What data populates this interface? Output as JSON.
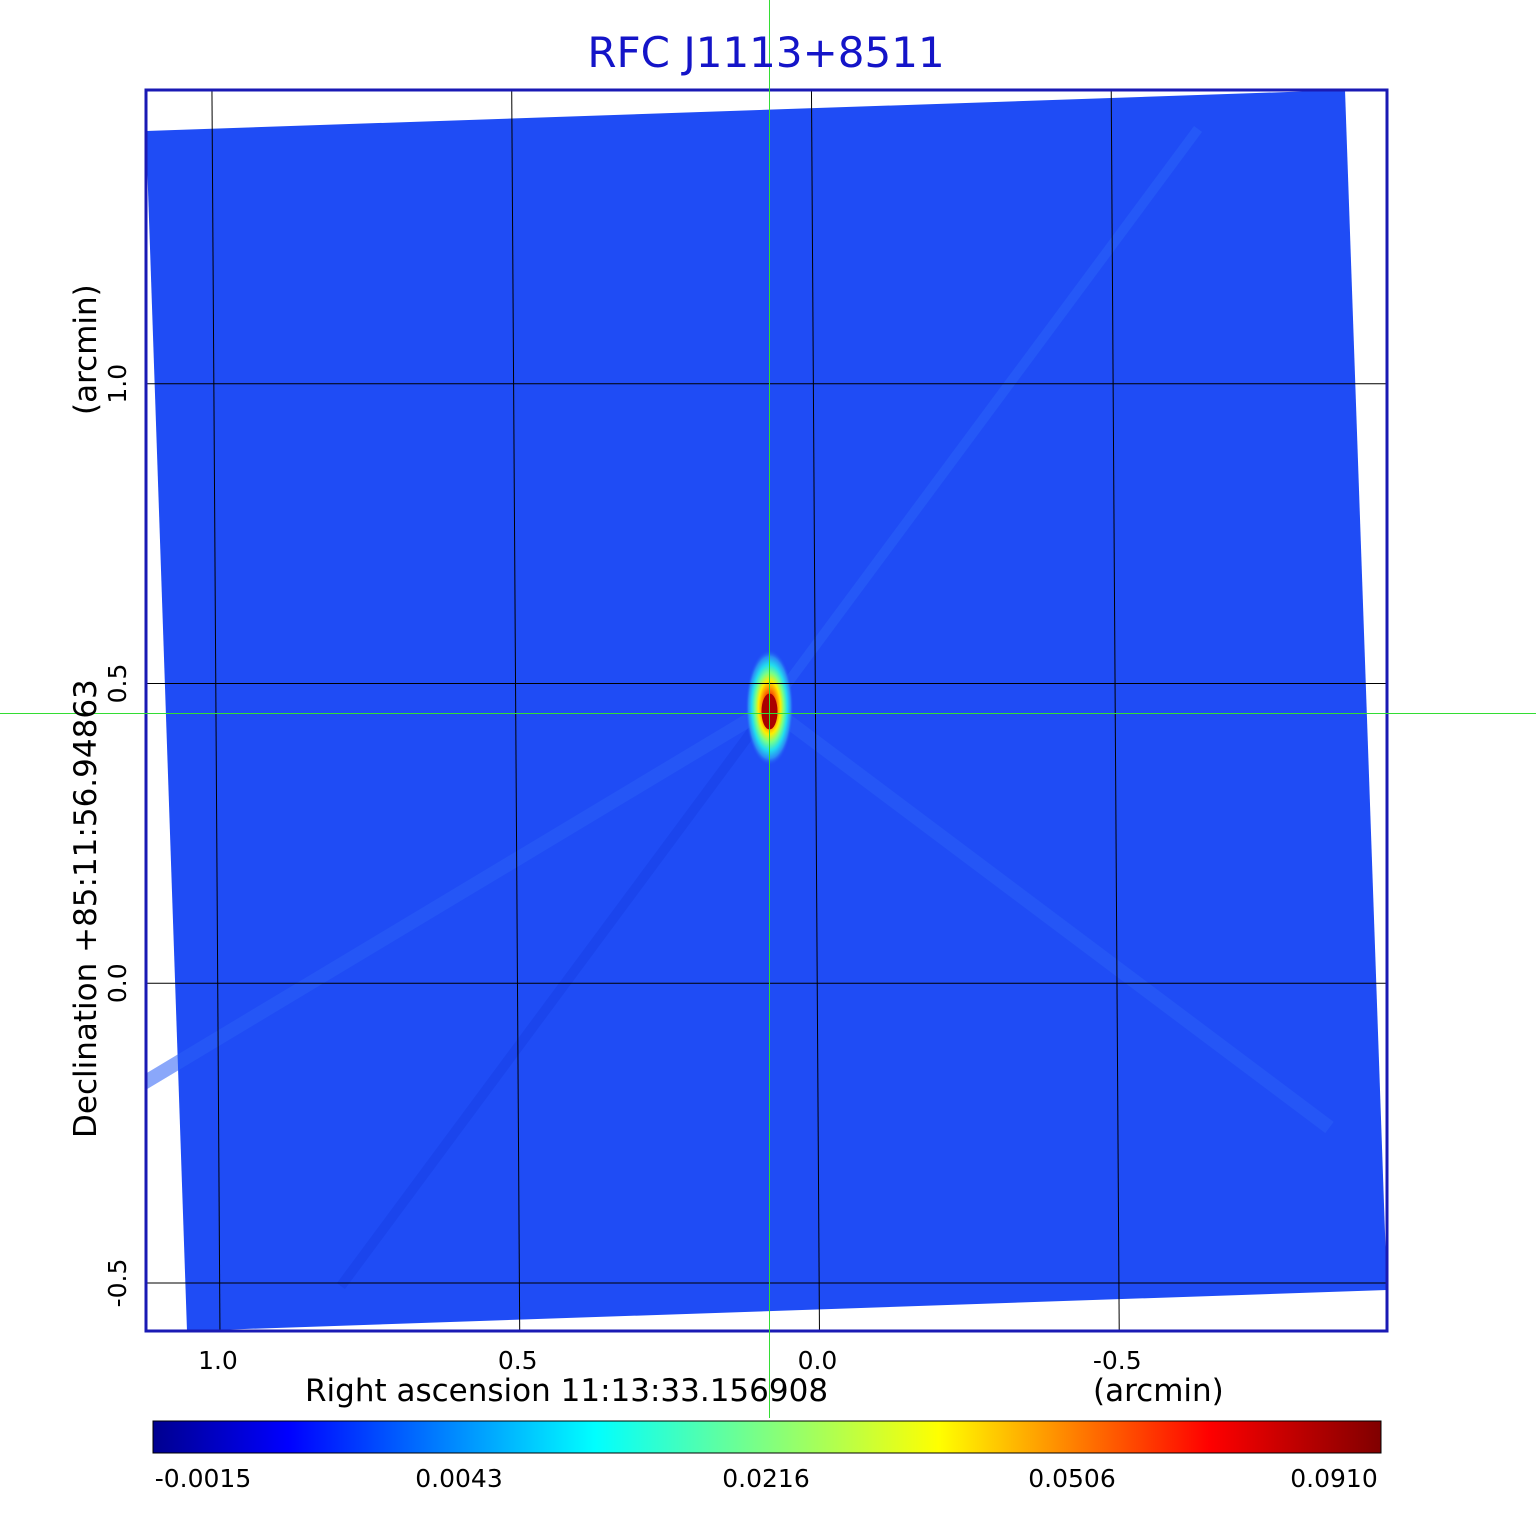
{
  "chart_data": {
    "type": "heatmap",
    "title": "RFC J1113+8511",
    "xlabel": "Right ascension  11:13:33.156908",
    "xunit": "(arcmin)",
    "ylabel": "Declination  +85:11:56.94863",
    "yunit": "(arcmin)",
    "xlim": [
      1.11,
      -0.96
    ],
    "ylim": [
      -0.58,
      1.49
    ],
    "x_ticks": [
      {
        "value": 1.0,
        "label": "1.0"
      },
      {
        "value": 0.5,
        "label": "0.5"
      },
      {
        "value": 0.0,
        "label": "0.0"
      },
      {
        "value": -0.5,
        "label": "-0.5"
      }
    ],
    "y_ticks": [
      {
        "value": 1.0,
        "label": "1.0"
      },
      {
        "value": 0.5,
        "label": "0.5"
      },
      {
        "value": 0.0,
        "label": "0.0"
      },
      {
        "value": -0.5,
        "label": "-0.5"
      }
    ],
    "grid": true,
    "crosshair": {
      "x": 0.07,
      "y": 0.45
    },
    "source": {
      "x": 0.07,
      "y": 0.46,
      "peak": 0.091
    },
    "colorbar": {
      "colormap": "jet",
      "ticks": [
        "-0.0015",
        "0.0043",
        "0.0216",
        "0.0506",
        "0.0910"
      ]
    },
    "colors": {
      "title": "#1414c8",
      "frame": "#1a1ab4",
      "background_field": "#1f4cf5",
      "crosshair": "#33dd33",
      "grid": "#000000"
    }
  }
}
